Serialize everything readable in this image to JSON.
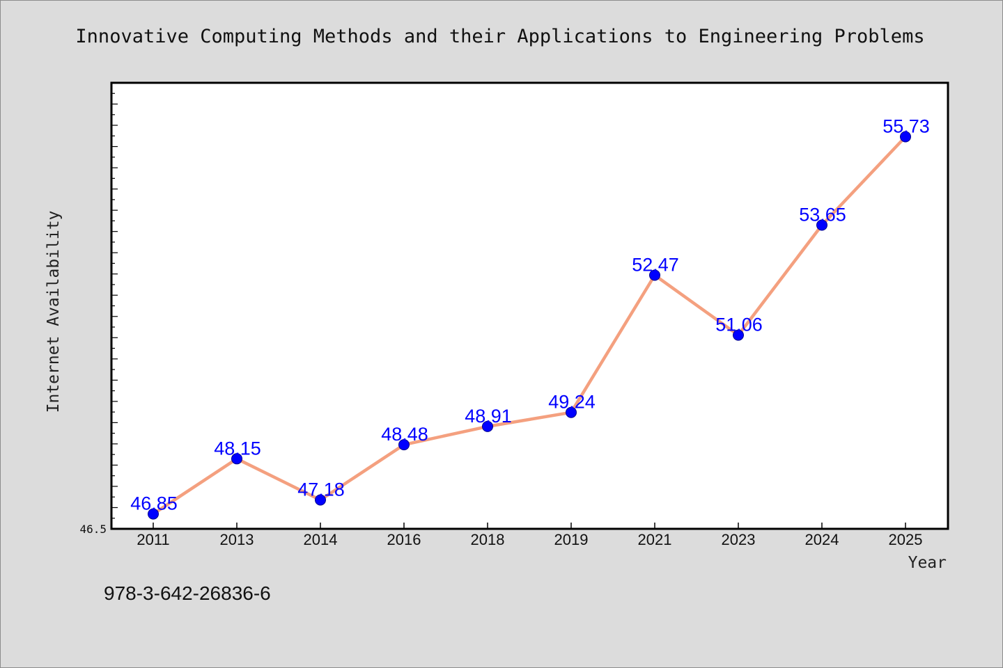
{
  "chart_data": {
    "type": "line",
    "title": "Innovative Computing Methods and their Applications to Engineering Problems",
    "xlabel": "Year",
    "ylabel": "Internet Availability",
    "categories": [
      "2011",
      "2013",
      "2014",
      "2016",
      "2018",
      "2019",
      "2021",
      "2023",
      "2024",
      "2025"
    ],
    "series": [
      {
        "values": [
          46.85,
          48.15,
          47.18,
          48.48,
          48.91,
          49.24,
          52.47,
          51.06,
          53.65,
          55.73
        ]
      }
    ],
    "data_labels": [
      "46.85",
      "48.15",
      "47.18",
      "48.48",
      "48.91",
      "49.24",
      "52.47",
      "51.06",
      "53.65",
      "55.73"
    ],
    "ylim": [
      46.5,
      57.0
    ],
    "y_min_label": "46.5",
    "grid": false,
    "line_color": "#f4a07f",
    "marker_color": "#0000ff",
    "label_color": "#0000ff"
  },
  "footer": {
    "isbn": "978-3-642-26836-6"
  }
}
